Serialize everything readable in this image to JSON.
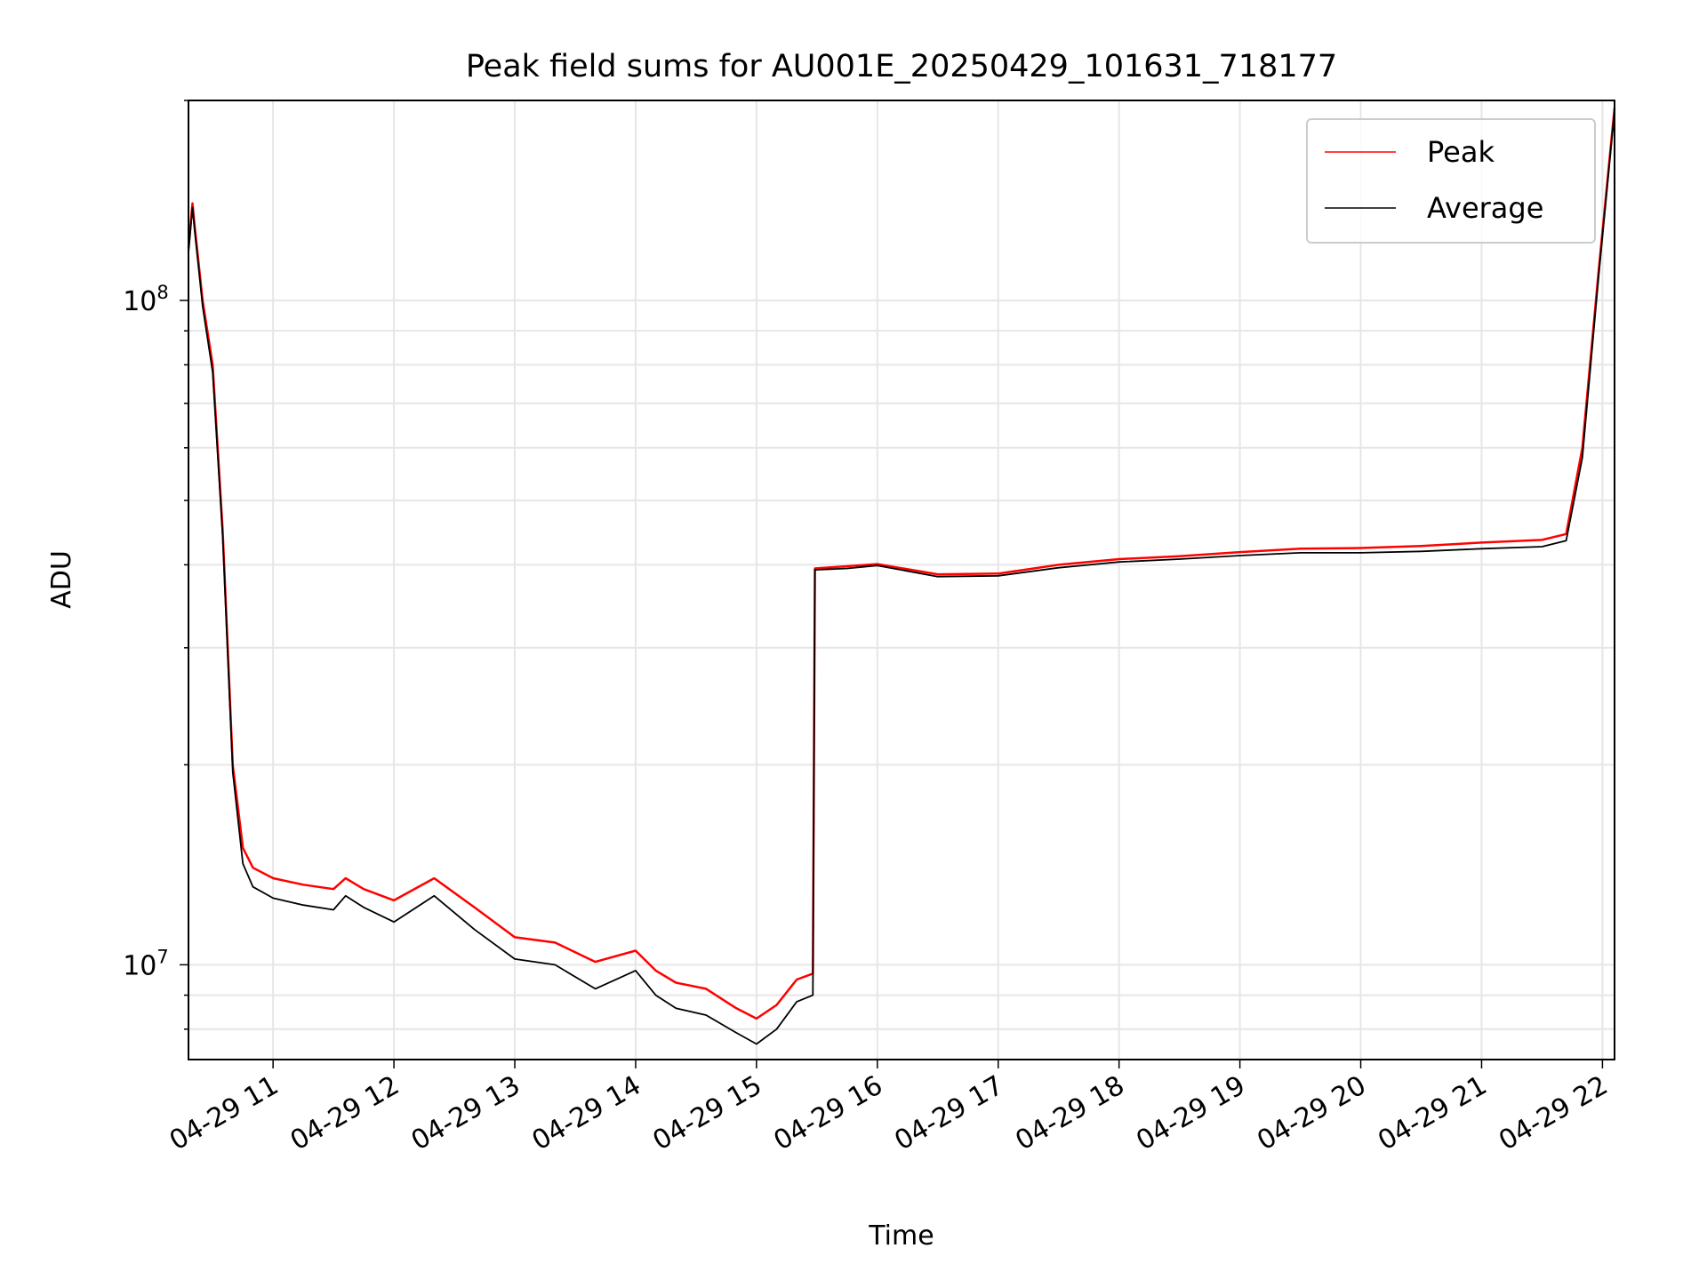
{
  "chart_data": {
    "type": "line",
    "title": "Peak field sums for AU001E_20250429_101631_718177",
    "xlabel": "Time",
    "ylabel": "ADU",
    "x_scale": "time",
    "y_scale": "log",
    "xlim": [
      "2025-04-29 10:18",
      "2025-04-29 22:06"
    ],
    "ylim": [
      7200000,
      200000000
    ],
    "x_ticks": [
      "04-29 11",
      "04-29 12",
      "04-29 13",
      "04-29 14",
      "04-29 15",
      "04-29 16",
      "04-29 17",
      "04-29 18",
      "04-29 19",
      "04-29 20",
      "04-29 21",
      "04-29 22"
    ],
    "y_ticks": [
      {
        "value": 10000000,
        "base": "10",
        "exp": "7"
      },
      {
        "value": 100000000,
        "base": "10",
        "exp": "8"
      }
    ],
    "grid": true,
    "legend": {
      "position": "top-right",
      "entries": [
        "Peak",
        "Average"
      ]
    },
    "series": [
      {
        "name": "Peak",
        "color": "#ff0000",
        "x": [
          "2025-04-29 10:18",
          "2025-04-29 10:20",
          "2025-04-29 10:21",
          "2025-04-29 10:25",
          "2025-04-29 10:30",
          "2025-04-29 10:35",
          "2025-04-29 10:40",
          "2025-04-29 10:45",
          "2025-04-29 10:50",
          "2025-04-29 11:00",
          "2025-04-29 11:15",
          "2025-04-29 11:30",
          "2025-04-29 11:36",
          "2025-04-29 11:45",
          "2025-04-29 12:00",
          "2025-04-29 12:20",
          "2025-04-29 12:40",
          "2025-04-29 13:00",
          "2025-04-29 13:20",
          "2025-04-29 13:40",
          "2025-04-29 14:00",
          "2025-04-29 14:10",
          "2025-04-29 14:20",
          "2025-04-29 14:35",
          "2025-04-29 14:50",
          "2025-04-29 15:00",
          "2025-04-29 15:10",
          "2025-04-29 15:20",
          "2025-04-29 15:28",
          "2025-04-29 15:29",
          "2025-04-29 15:45",
          "2025-04-29 16:00",
          "2025-04-29 16:30",
          "2025-04-29 17:00",
          "2025-04-29 17:30",
          "2025-04-29 18:00",
          "2025-04-29 18:30",
          "2025-04-29 19:00",
          "2025-04-29 19:30",
          "2025-04-29 20:00",
          "2025-04-29 20:30",
          "2025-04-29 21:00",
          "2025-04-29 21:30",
          "2025-04-29 21:42",
          "2025-04-29 21:50",
          "2025-04-29 21:58",
          "2025-04-29 22:06"
        ],
        "y": [
          120000000,
          140000000,
          130000000,
          100000000,
          80000000,
          45000000,
          20000000,
          15000000,
          14000000,
          13500000,
          13200000,
          13000000,
          13500000,
          13000000,
          12500000,
          13500000,
          12200000,
          11000000,
          10800000,
          10100000,
          10500000,
          9800000,
          9400000,
          9200000,
          8600000,
          8300000,
          8700000,
          9500000,
          9700000,
          39500000,
          39800000,
          40100000,
          38700000,
          38800000,
          40000000,
          40800000,
          41200000,
          41800000,
          42300000,
          42400000,
          42700000,
          43200000,
          43600000,
          44500000,
          60000000,
          110000000,
          195000000
        ]
      },
      {
        "name": "Average",
        "color": "#000000",
        "x": [
          "2025-04-29 10:18",
          "2025-04-29 10:20",
          "2025-04-29 10:21",
          "2025-04-29 10:25",
          "2025-04-29 10:30",
          "2025-04-29 10:35",
          "2025-04-29 10:40",
          "2025-04-29 10:45",
          "2025-04-29 10:50",
          "2025-04-29 11:00",
          "2025-04-29 11:15",
          "2025-04-29 11:30",
          "2025-04-29 11:36",
          "2025-04-29 11:45",
          "2025-04-29 12:00",
          "2025-04-29 12:20",
          "2025-04-29 12:40",
          "2025-04-29 13:00",
          "2025-04-29 13:20",
          "2025-04-29 13:40",
          "2025-04-29 14:00",
          "2025-04-29 14:10",
          "2025-04-29 14:20",
          "2025-04-29 14:35",
          "2025-04-29 14:50",
          "2025-04-29 15:00",
          "2025-04-29 15:10",
          "2025-04-29 15:20",
          "2025-04-29 15:28",
          "2025-04-29 15:29",
          "2025-04-29 15:45",
          "2025-04-29 16:00",
          "2025-04-29 16:30",
          "2025-04-29 17:00",
          "2025-04-29 17:30",
          "2025-04-29 18:00",
          "2025-04-29 18:30",
          "2025-04-29 19:00",
          "2025-04-29 19:30",
          "2025-04-29 20:00",
          "2025-04-29 20:30",
          "2025-04-29 21:00",
          "2025-04-29 21:30",
          "2025-04-29 21:42",
          "2025-04-29 21:50",
          "2025-04-29 21:58",
          "2025-04-29 22:06"
        ],
        "y": [
          118000000,
          138000000,
          128000000,
          98000000,
          78000000,
          44000000,
          19500000,
          14200000,
          13100000,
          12600000,
          12300000,
          12100000,
          12700000,
          12200000,
          11600000,
          12700000,
          11300000,
          10200000,
          10000000,
          9200000,
          9800000,
          9000000,
          8600000,
          8400000,
          7900000,
          7600000,
          8000000,
          8800000,
          9000000,
          39300000,
          39500000,
          39900000,
          38400000,
          38500000,
          39600000,
          40400000,
          40800000,
          41300000,
          41700000,
          41700000,
          41900000,
          42300000,
          42600000,
          43500000,
          58000000,
          108000000,
          193000000
        ]
      }
    ]
  }
}
